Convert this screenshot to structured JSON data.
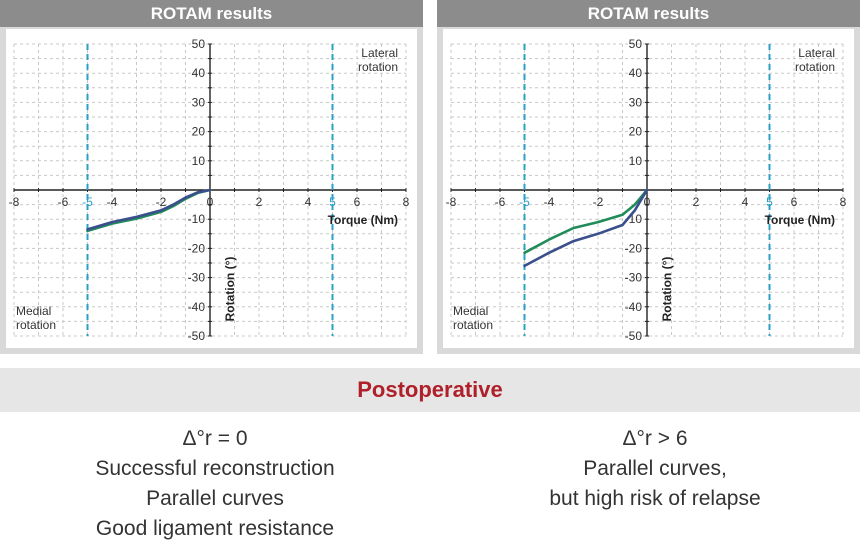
{
  "banner": {
    "title": "Postoperative"
  },
  "colors": {
    "green": "#1f8c5a",
    "navy": "#3a4f8c",
    "marker": "#2aa0c8",
    "grid": "#c8c8c8"
  },
  "charts": [
    {
      "title": "ROTAM results",
      "caption": [
        "Δ°r = 0",
        "Successful reconstruction",
        "Parallel curves",
        "Good ligament resistance"
      ]
    },
    {
      "title": "ROTAM results",
      "caption": [
        "Δ°r > 6",
        "Parallel curves,",
        "but high risk of relapse"
      ]
    }
  ],
  "chart_data": [
    {
      "type": "line",
      "title": "ROTAM results",
      "xlabel": "Torque (Nm)",
      "ylabel": "Rotation (°)",
      "xlim": [
        -8,
        8
      ],
      "ylim": [
        -50,
        50
      ],
      "xticks": [
        "-8",
        "-6",
        "-4",
        "-2",
        "0",
        "2",
        "4",
        "6",
        "8"
      ],
      "yticks": [
        "50",
        "40",
        "30",
        "20",
        "10",
        "-10",
        "-20",
        "-30",
        "-40",
        "-50"
      ],
      "grid": true,
      "markers": [
        {
          "x": -5,
          "label": "-5"
        },
        {
          "x": 5,
          "label": "5"
        }
      ],
      "annotations": [
        {
          "text": [
            "Lateral",
            "rotation"
          ],
          "position": "top-right"
        },
        {
          "text": [
            "Medial",
            "rotation"
          ],
          "position": "bottom-left"
        }
      ],
      "series": [
        {
          "color": "#1f8c5a",
          "x": [
            -5,
            -4,
            -3,
            -2,
            -1.5,
            -1,
            -0.5,
            0
          ],
          "y": [
            -14,
            -11.5,
            -9.8,
            -7.5,
            -5.5,
            -3,
            -1,
            0
          ]
        },
        {
          "color": "#3a4f8c",
          "x": [
            -5,
            -4,
            -3,
            -2,
            -1.5,
            -1,
            -0.5,
            0
          ],
          "y": [
            -13.5,
            -11,
            -9.2,
            -7,
            -5,
            -2.6,
            -0.8,
            0
          ]
        }
      ]
    },
    {
      "type": "line",
      "title": "ROTAM results",
      "xlabel": "Torque (Nm)",
      "ylabel": "Rotation (°)",
      "xlim": [
        -8,
        8
      ],
      "ylim": [
        -50,
        50
      ],
      "xticks": [
        "-8",
        "-6",
        "-4",
        "-2",
        "0",
        "2",
        "4",
        "6",
        "8"
      ],
      "yticks": [
        "50",
        "40",
        "30",
        "20",
        "10",
        "-10",
        "-20",
        "-30",
        "-40",
        "-50"
      ],
      "grid": true,
      "markers": [
        {
          "x": -5,
          "label": "-5"
        },
        {
          "x": 5,
          "label": "5"
        }
      ],
      "annotations": [
        {
          "text": [
            "Lateral",
            "rotation"
          ],
          "position": "top-right"
        },
        {
          "text": [
            "Medial",
            "rotation"
          ],
          "position": "bottom-left"
        }
      ],
      "series": [
        {
          "color": "#1f8c5a",
          "x": [
            -5,
            -4,
            -3,
            -2,
            -1,
            -0.5,
            0
          ],
          "y": [
            -21.5,
            -17,
            -13,
            -11,
            -8.5,
            -5,
            0
          ]
        },
        {
          "color": "#3a4f8c",
          "x": [
            -5,
            -4,
            -3,
            -2,
            -1,
            -0.5,
            0
          ],
          "y": [
            -26,
            -21.5,
            -17.5,
            -15,
            -12,
            -7,
            0
          ]
        }
      ]
    }
  ]
}
